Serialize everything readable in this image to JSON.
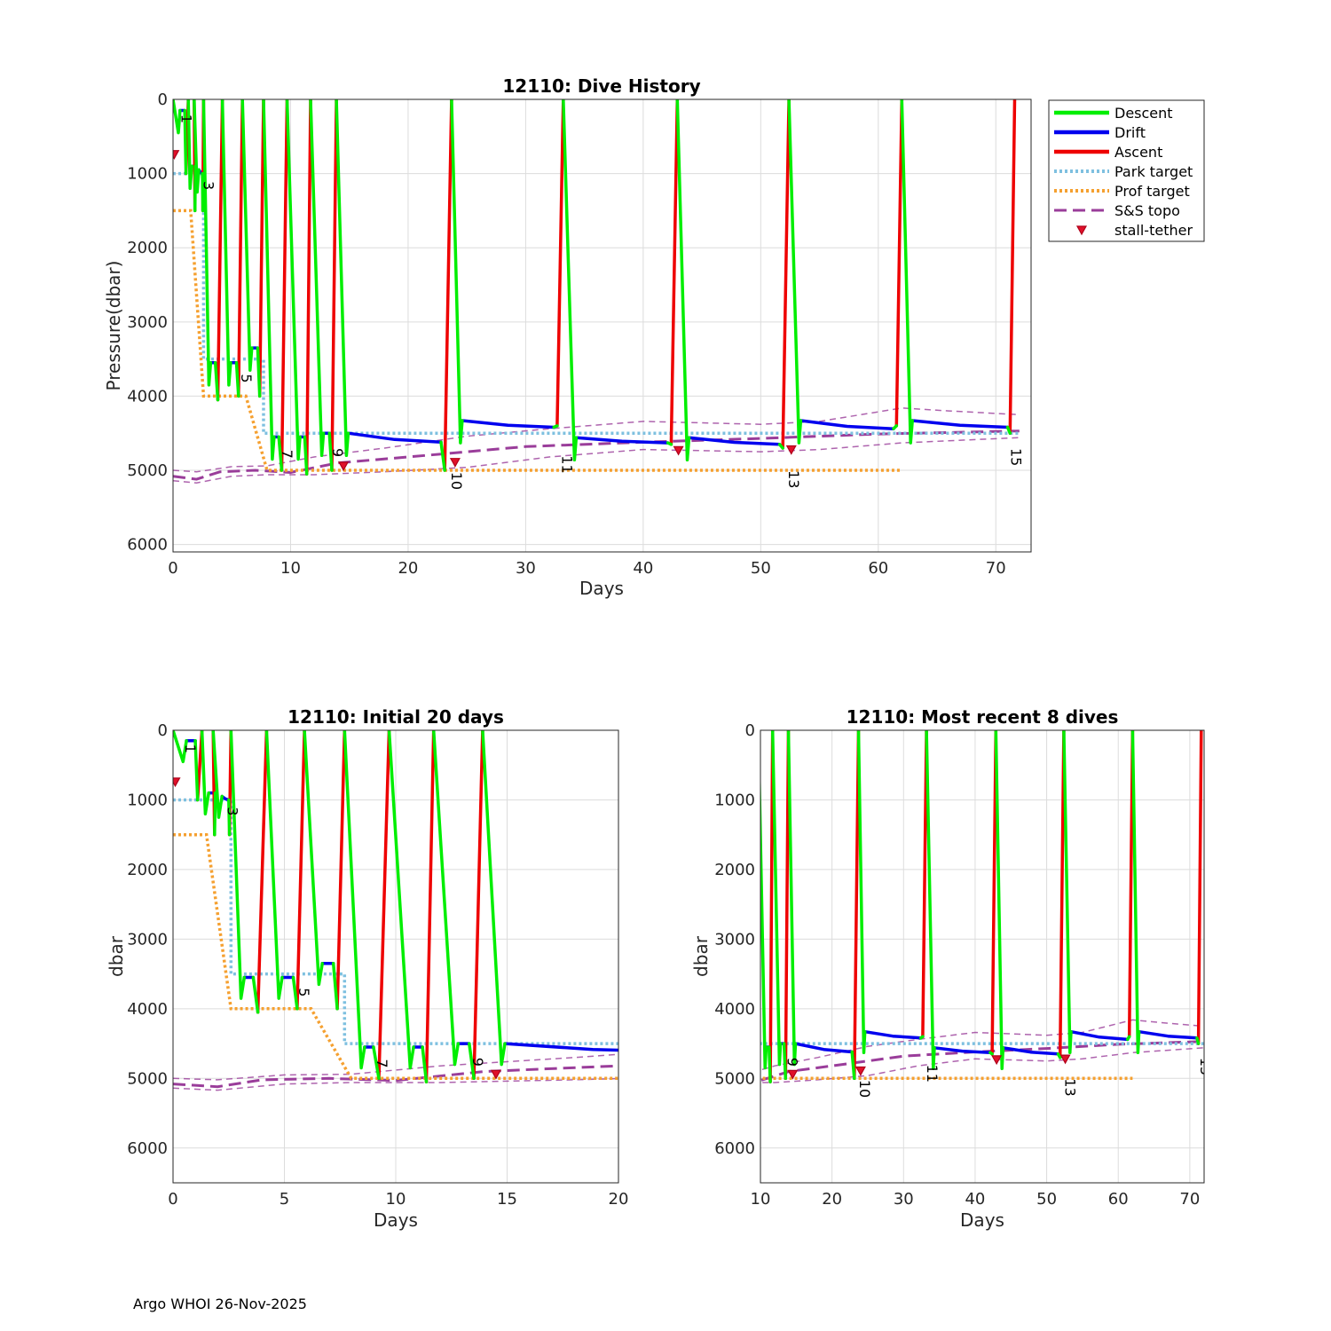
{
  "credit": "Argo WHOI 26-Nov-2025",
  "colors": {
    "descent": "#00ee00",
    "drift": "#0000ee",
    "ascent": "#ee0000",
    "park": "#7ec0e0",
    "prof": "#f5a030",
    "topo": "#9a3d9a",
    "stall": "#e0102a"
  },
  "legend": [
    {
      "label": "Descent",
      "key": "descent",
      "style": "solid"
    },
    {
      "label": "Drift",
      "key": "drift",
      "style": "solid"
    },
    {
      "label": "Ascent",
      "key": "ascent",
      "style": "solid"
    },
    {
      "label": "Park target",
      "key": "park",
      "style": "dotted"
    },
    {
      "label": "Prof target",
      "key": "prof",
      "style": "dotted"
    },
    {
      "label": "S&S topo",
      "key": "topo",
      "style": "dashed"
    },
    {
      "label": "stall-tether",
      "key": "stall",
      "style": "marker"
    }
  ],
  "chart_data": {
    "type": "line",
    "dives": [
      {
        "n": 1,
        "start": 0.0,
        "drift": [
          [
            0.6,
            150
          ],
          [
            1.0,
            150
          ]
        ],
        "bottom": 1000,
        "asc_end": 1.3
      },
      {
        "n": 2,
        "start": 1.3,
        "drift": [
          [
            1.6,
            900
          ],
          [
            1.9,
            900
          ]
        ],
        "bottom": 1500,
        "asc_end": 1.8
      },
      {
        "n": 3,
        "start": 1.8,
        "drift": [
          [
            2.2,
            950
          ],
          [
            2.5,
            1000
          ]
        ],
        "bottom": 1500,
        "asc_end": 2.6
      },
      {
        "n": 4,
        "start": 2.6,
        "drift": [
          [
            3.2,
            3550
          ],
          [
            3.6,
            3550
          ]
        ],
        "bottom": 4050,
        "asc_end": 4.2
      },
      {
        "n": 5,
        "start": 4.2,
        "drift": [
          [
            4.9,
            3550
          ],
          [
            5.4,
            3550
          ]
        ],
        "bottom": 4000,
        "asc_end": 5.9
      },
      {
        "n": 6,
        "start": 5.9,
        "drift": [
          [
            6.7,
            3350
          ],
          [
            7.2,
            3350
          ]
        ],
        "bottom": 4000,
        "asc_end": 7.7
      },
      {
        "n": 7,
        "start": 7.7,
        "drift": [
          [
            8.6,
            4550
          ],
          [
            9.0,
            4550
          ]
        ],
        "bottom": 5000,
        "asc_end": 9.7
      },
      {
        "n": 8,
        "start": 9.7,
        "drift": [
          [
            10.8,
            4550
          ],
          [
            11.2,
            4550
          ]
        ],
        "bottom": 5050,
        "asc_end": 11.7
      },
      {
        "n": 9,
        "start": 11.7,
        "drift": [
          [
            12.8,
            4500
          ],
          [
            13.3,
            4500
          ]
        ],
        "bottom": 5000,
        "asc_end": 13.9
      },
      {
        "n": 10,
        "start": 13.9,
        "drift": [
          [
            14.9,
            4500
          ],
          [
            22.8,
            4620
          ]
        ],
        "bottom": 5000,
        "asc_end": 23.7
      },
      {
        "n": 11,
        "start": 23.7,
        "drift": [
          [
            24.6,
            4330
          ],
          [
            32.4,
            4420
          ]
        ],
        "bottom": 4400,
        "asc_end": 33.2
      },
      {
        "n": 12,
        "start": 33.2,
        "drift": [
          [
            34.3,
            4560
          ],
          [
            42.1,
            4630
          ]
        ],
        "bottom": 4650,
        "asc_end": 42.9
      },
      {
        "n": 13,
        "start": 42.9,
        "drift": [
          [
            43.9,
            4560
          ],
          [
            51.6,
            4650
          ]
        ],
        "bottom": 4700,
        "asc_end": 52.4
      },
      {
        "n": 14,
        "start": 52.4,
        "drift": [
          [
            53.4,
            4330
          ],
          [
            61.3,
            4440
          ]
        ],
        "bottom": 4400,
        "asc_end": 62.0
      },
      {
        "n": 15,
        "start": 62.0,
        "drift": [
          [
            62.9,
            4330
          ],
          [
            71.0,
            4420
          ]
        ],
        "bottom": 4500,
        "asc_end": 71.6
      }
    ],
    "dive_labels": [
      {
        "n": "1",
        "x": 0.4,
        "y": 200
      },
      {
        "n": "3",
        "x": 2.3,
        "y": 1100
      },
      {
        "n": "5",
        "x": 5.5,
        "y": 3700
      },
      {
        "n": "7",
        "x": 9.0,
        "y": 4720
      },
      {
        "n": "9",
        "x": 13.3,
        "y": 4700
      },
      {
        "n": "10",
        "x": 23.4,
        "y": 5020
      },
      {
        "n": "11",
        "x": 32.8,
        "y": 4800
      },
      {
        "n": "13",
        "x": 52.1,
        "y": 5000
      },
      {
        "n": "15",
        "x": 71.0,
        "y": 4700
      }
    ],
    "park_target": [
      [
        0,
        1000
      ],
      [
        2.6,
        1000
      ],
      [
        2.6,
        3500
      ],
      [
        7.7,
        3500
      ],
      [
        7.7,
        4500
      ],
      [
        72,
        4500
      ]
    ],
    "prof_target": [
      [
        0,
        1500
      ],
      [
        1.5,
        1500
      ],
      [
        2.6,
        4000
      ],
      [
        6.2,
        4000
      ],
      [
        8.0,
        5000
      ],
      [
        62,
        5000
      ]
    ],
    "topo_mean": [
      [
        0,
        5080
      ],
      [
        2,
        5120
      ],
      [
        4,
        5020
      ],
      [
        7,
        5000
      ],
      [
        10,
        5030
      ],
      [
        14,
        4900
      ],
      [
        20,
        4820
      ],
      [
        25,
        4750
      ],
      [
        30,
        4680
      ],
      [
        40,
        4620
      ],
      [
        50,
        4570
      ],
      [
        60,
        4510
      ],
      [
        72,
        4470
      ]
    ],
    "topo_upper": [
      [
        0,
        5000
      ],
      [
        2,
        5020
      ],
      [
        5,
        4950
      ],
      [
        8,
        4940
      ],
      [
        12,
        4820
      ],
      [
        18,
        4700
      ],
      [
        25,
        4540
      ],
      [
        32,
        4440
      ],
      [
        40,
        4340
      ],
      [
        50,
        4380
      ],
      [
        55,
        4340
      ],
      [
        62,
        4160
      ],
      [
        66,
        4200
      ],
      [
        72,
        4250
      ]
    ],
    "topo_lower": [
      [
        0,
        5140
      ],
      [
        2,
        5170
      ],
      [
        5,
        5080
      ],
      [
        8,
        5060
      ],
      [
        12,
        5060
      ],
      [
        18,
        5020
      ],
      [
        25,
        4960
      ],
      [
        32,
        4820
      ],
      [
        40,
        4720
      ],
      [
        50,
        4750
      ],
      [
        55,
        4720
      ],
      [
        62,
        4630
      ],
      [
        72,
        4560
      ]
    ],
    "stall_tether": [
      [
        0.1,
        750
      ],
      [
        14.5,
        4950
      ],
      [
        24.0,
        4900
      ],
      [
        43.0,
        4740
      ],
      [
        52.6,
        4730
      ]
    ],
    "panels": [
      {
        "title": "12110: Dive History",
        "xlabel": "Days",
        "ylabel": "Pressure(dbar)",
        "xlim": [
          0,
          73
        ],
        "ylim": [
          0,
          6100
        ],
        "xticks": [
          0,
          10,
          20,
          30,
          40,
          50,
          60,
          70
        ],
        "yticks": [
          0,
          1000,
          2000,
          3000,
          4000,
          5000,
          6000
        ]
      },
      {
        "title": "12110: Initial 20 days",
        "xlabel": "Days",
        "ylabel": "dbar",
        "xlim": [
          0,
          20
        ],
        "ylim": [
          0,
          6500
        ],
        "xticks": [
          0,
          5,
          10,
          15,
          20
        ],
        "yticks": [
          0,
          1000,
          2000,
          3000,
          4000,
          5000,
          6000
        ]
      },
      {
        "title": "12110: Most recent 8 dives",
        "xlabel": "Days",
        "ylabel": "dbar",
        "xlim": [
          10,
          72
        ],
        "ylim": [
          0,
          6500
        ],
        "xticks": [
          10,
          20,
          30,
          40,
          50,
          60,
          70
        ],
        "yticks": [
          0,
          1000,
          2000,
          3000,
          4000,
          5000,
          6000
        ]
      }
    ]
  }
}
